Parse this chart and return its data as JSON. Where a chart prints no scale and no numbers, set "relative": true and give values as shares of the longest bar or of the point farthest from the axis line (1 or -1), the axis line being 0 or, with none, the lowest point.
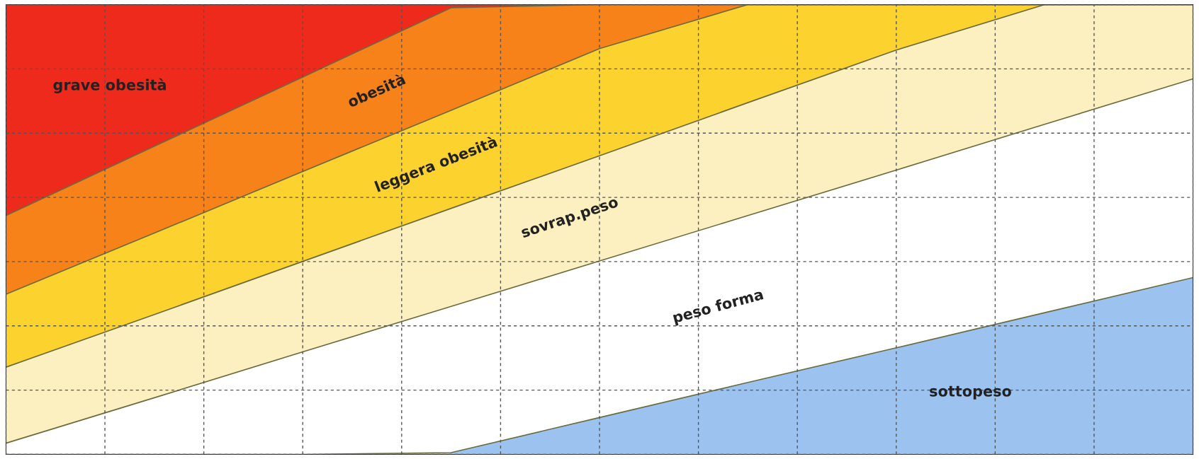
{
  "chart_data": {
    "type": "area",
    "stacked": true,
    "relative": true,
    "grid": true,
    "legend": false,
    "categories": [
      null,
      null,
      null,
      null,
      null,
      null,
      null,
      null,
      null
    ],
    "series": [
      {
        "name": "sottopeso",
        "color": "#9cc2f0",
        "values": [
          0,
          0,
          0,
          0.004,
          0.082,
          0.16,
          0.237,
          0.315,
          0.393
        ]
      },
      {
        "name": "peso forma",
        "color": "#ffffff",
        "values": [
          0.025,
          0.126,
          0.228,
          0.325,
          0.348,
          0.371,
          0.395,
          0.419,
          0.442
        ]
      },
      {
        "name": "sovrap.peso",
        "color": "#fcefc0",
        "values": [
          0.169,
          0.185,
          0.201,
          0.218,
          0.234,
          0.251,
          0.267,
          0.266,
          0.165
        ]
      },
      {
        "name": "leggera obesità",
        "color": "#fcd22e",
        "values": [
          0.162,
          0.181,
          0.2,
          0.218,
          0.238,
          0.218,
          0.101,
          0,
          0
        ]
      },
      {
        "name": "obesità",
        "color": "#f7821a",
        "values": [
          0.175,
          0.193,
          0.21,
          0.228,
          0.098,
          0,
          0,
          0,
          0
        ]
      },
      {
        "name": "grave obesità",
        "color": "#ee2a1c",
        "values": [
          0.469,
          0.315,
          0.161,
          0.007,
          0,
          0,
          0,
          0,
          0
        ]
      }
    ]
  }
}
